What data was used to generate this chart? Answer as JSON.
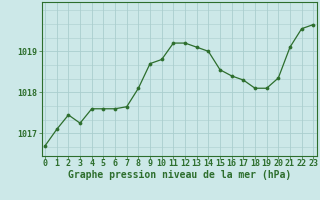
{
  "x": [
    0,
    1,
    2,
    3,
    4,
    5,
    6,
    7,
    8,
    9,
    10,
    11,
    12,
    13,
    14,
    15,
    16,
    17,
    18,
    19,
    20,
    21,
    22,
    23
  ],
  "y": [
    1016.7,
    1017.1,
    1017.45,
    1017.25,
    1017.6,
    1017.6,
    1017.6,
    1017.65,
    1018.1,
    1018.7,
    1018.8,
    1019.2,
    1019.2,
    1019.1,
    1019.0,
    1018.55,
    1018.4,
    1018.3,
    1018.1,
    1018.1,
    1018.35,
    1019.1,
    1019.55,
    1019.65
  ],
  "line_color": "#2d6e2d",
  "marker_color": "#2d6e2d",
  "bg_color": "#cce8e8",
  "grid_color": "#aacece",
  "xlabel": "Graphe pression niveau de la mer (hPa)",
  "ylabel_ticks": [
    1017,
    1018,
    1019
  ],
  "xlim": [
    -0.3,
    23.3
  ],
  "ylim": [
    1016.45,
    1020.2
  ],
  "axis_color": "#2d6e2d",
  "tick_color": "#2d6e2d",
  "xlabel_fontsize": 7,
  "tick_fontsize": 6
}
